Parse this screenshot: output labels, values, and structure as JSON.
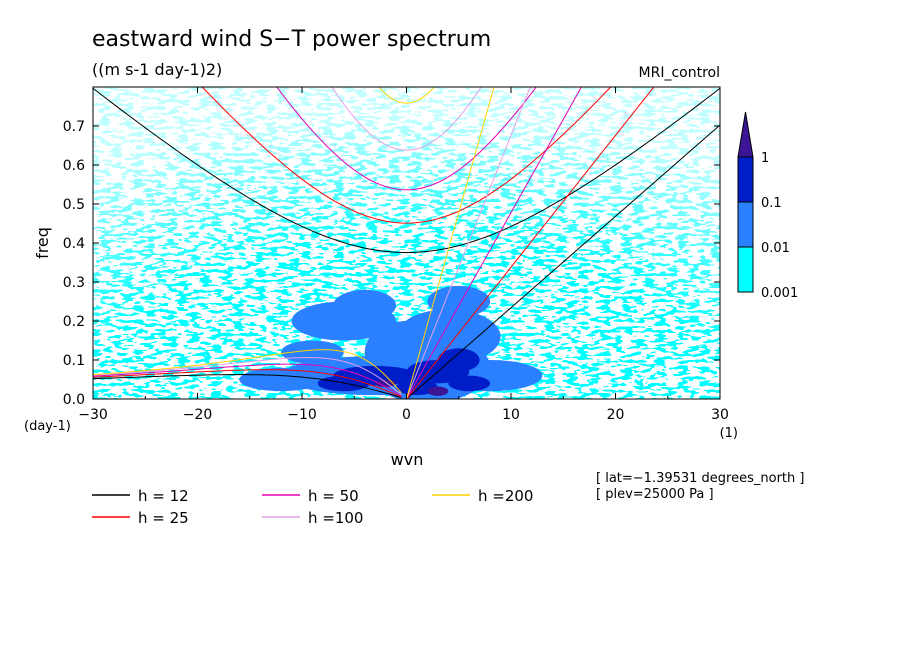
{
  "chart_data": {
    "type": "heatmap",
    "title": "eastward wind S−T power spectrum",
    "units": "((m s-1 day-1)2)",
    "model": "MRI_control",
    "xlabel": "wvn",
    "ylabel": "freq",
    "x_unit": "(1)",
    "y_unit": "(day-1)",
    "xlim": [
      -30,
      30
    ],
    "ylim": [
      0,
      0.8
    ],
    "x_ticks": [
      -30,
      -20,
      -10,
      0,
      10,
      20,
      30
    ],
    "x_tick_labels": [
      "−30",
      "−20",
      "−10",
      "0",
      "10",
      "20",
      "30"
    ],
    "y_ticks": [
      0.0,
      0.1,
      0.2,
      0.3,
      0.4,
      0.5,
      0.6,
      0.7
    ],
    "y_tick_labels": [
      "0.0",
      "0.1",
      "0.2",
      "0.3",
      "0.4",
      "0.5",
      "0.6",
      "0.7"
    ],
    "colorbar": {
      "levels": [
        "0.001",
        "0.01",
        "0.1",
        "1"
      ],
      "colors": [
        "#00ffff",
        "#2a80ff",
        "#001ec8",
        "#3c1496"
      ]
    },
    "fill_colors": {
      "low": "#00ffff",
      "mid": "#2a80ff",
      "high": "#001ec8",
      "max": "#3c1496"
    },
    "dispersion_curves": [
      {
        "h": 12,
        "label": "h = 12",
        "color": "#000000"
      },
      {
        "h": 25,
        "label": "h = 25",
        "color": "#ff0000"
      },
      {
        "h": 50,
        "label": "h = 50",
        "color": "#e600b4"
      },
      {
        "h": 100,
        "label": "h =100",
        "color": "#e6a0e6"
      },
      {
        "h": 200,
        "label": "h =200",
        "color": "#ffd200"
      }
    ],
    "annotations": [
      "[ lat=−1.39531 degrees_north ]",
      "[ plev=25000 Pa ]"
    ]
  }
}
